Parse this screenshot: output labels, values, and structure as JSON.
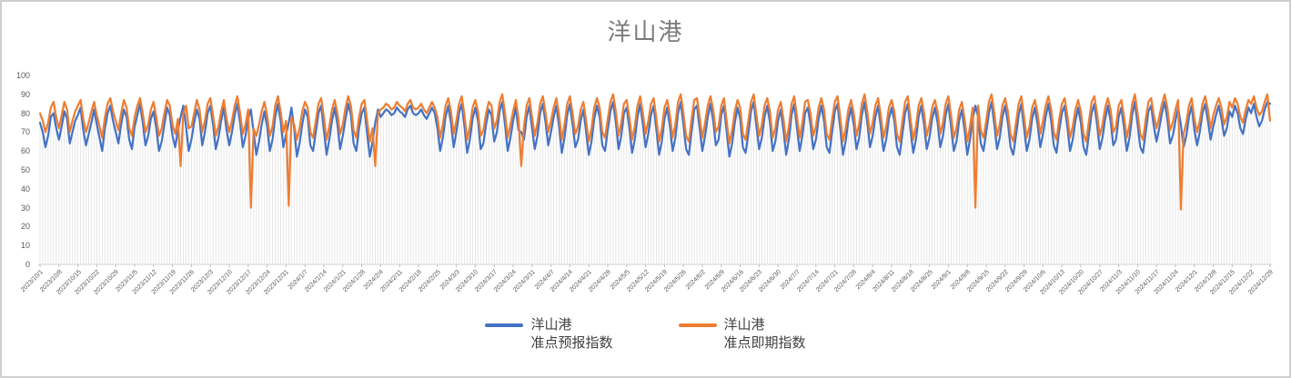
{
  "window": {
    "background": "#ffffff",
    "border_color": "#cfcfcf"
  },
  "chart_data": {
    "type": "line",
    "title": "洋山港",
    "title_color": "#7b7b7b",
    "xlabel": "",
    "ylabel": "",
    "ylim": [
      0,
      100
    ],
    "y_ticks": [
      0,
      10,
      20,
      30,
      40,
      50,
      60,
      70,
      80,
      90,
      100
    ],
    "x_start": "2023/10/1",
    "x_interval": "daily",
    "x_tick_every": 7,
    "legend_position": "bottom-center",
    "grid": "vertical droplines at every data point, no horizontal gridlines",
    "axis_color": "#d9d9d9",
    "dropline_color": "#e2e2e2",
    "tick_mark_color": "#bfbfbf",
    "tick_label_color": "#595959",
    "x_tick_labels": [
      "2023/10/1",
      "2023/10/8",
      "2023/10/15",
      "2023/10/22",
      "2023/10/29",
      "2023/11/5",
      "2023/11/12",
      "2023/11/19",
      "2023/11/26",
      "2023/12/3",
      "2023/12/10",
      "2023/12/17",
      "2023/12/24",
      "2023/12/31",
      "2024/1/7",
      "2024/1/14",
      "2024/1/21",
      "2024/1/28",
      "2024/2/4",
      "2024/2/11",
      "2024/2/18",
      "2024/2/25",
      "2024/3/3",
      "2024/3/10",
      "2024/3/17",
      "2024/3/24",
      "2024/3/31",
      "2024/4/7",
      "2024/4/14",
      "2024/4/21",
      "2024/4/28",
      "2024/5/5",
      "2024/5/12",
      "2024/5/19",
      "2024/5/26",
      "2024/6/2",
      "2024/6/9",
      "2024/6/16",
      "2024/6/23",
      "2024/6/30",
      "2024/7/7",
      "2024/7/14",
      "2024/7/21",
      "2024/7/28",
      "2024/8/4",
      "2024/8/11",
      "2024/8/18",
      "2024/8/25",
      "2024/9/1",
      "2024/9/8",
      "2024/9/15",
      "2024/9/22",
      "2024/9/29",
      "2024/10/6",
      "2024/10/13",
      "2024/10/20",
      "2024/10/27",
      "2024/11/3",
      "2024/11/10",
      "2024/11/17",
      "2024/11/24",
      "2024/12/1",
      "2024/12/8",
      "2024/12/15",
      "2024/12/22",
      "2024/12/29"
    ],
    "series": [
      {
        "name_line1": "洋山港",
        "name_line2": "准点预报指数",
        "color": "#4472C4",
        "values": [
          75,
          70,
          62,
          68,
          78,
          80,
          72,
          66,
          73,
          81,
          77,
          64,
          70,
          76,
          79,
          83,
          71,
          63,
          69,
          75,
          82,
          74,
          67,
          60,
          72,
          80,
          84,
          76,
          70,
          64,
          74,
          82,
          78,
          66,
          61,
          73,
          79,
          85,
          75,
          63,
          68,
          77,
          81,
          72,
          60,
          65,
          74,
          83,
          79,
          68,
          62,
          71,
          78,
          84,
          73,
          60,
          66,
          75,
          82,
          77,
          63,
          70,
          80,
          84,
          74,
          61,
          67,
          76,
          83,
          71,
          63,
          70,
          79,
          85,
          75,
          62,
          68,
          77,
          82,
          70,
          58,
          65,
          74,
          81,
          73,
          60,
          66,
          78,
          85,
          76,
          62,
          69,
          75,
          83,
          72,
          57,
          64,
          74,
          82,
          78,
          63,
          60,
          70,
          80,
          84,
          71,
          58,
          66,
          76,
          83,
          74,
          61,
          68,
          77,
          85,
          79,
          64,
          60,
          72,
          80,
          83,
          69,
          57,
          65,
          75,
          82,
          78,
          80,
          82,
          81,
          79,
          80,
          83,
          81,
          80,
          78,
          82,
          84,
          80,
          79,
          80,
          82,
          79,
          77,
          80,
          83,
          80,
          72,
          60,
          67,
          78,
          84,
          75,
          62,
          70,
          80,
          85,
          73,
          59,
          66,
          77,
          83,
          76,
          61,
          64,
          74,
          82,
          79,
          65,
          70,
          81,
          86,
          74,
          60,
          67,
          76,
          83,
          71,
          70,
          66,
          78,
          84,
          72,
          61,
          68,
          80,
          85,
          75,
          63,
          70,
          78,
          84,
          73,
          59,
          67,
          79,
          85,
          74,
          62,
          66,
          76,
          82,
          70,
          58,
          65,
          77,
          84,
          78,
          63,
          60,
          71,
          81,
          86,
          75,
          61,
          68,
          80,
          83,
          72,
          59,
          66,
          78,
          85,
          74,
          62,
          69,
          79,
          84,
          71,
          58,
          65,
          77,
          83,
          73,
          60,
          67,
          80,
          86,
          74,
          61,
          58,
          70,
          82,
          84,
          72,
          60,
          68,
          78,
          85,
          76,
          63,
          66,
          79,
          84,
          70,
          57,
          64,
          75,
          83,
          77,
          62,
          59,
          69,
          81,
          86,
          73,
          61,
          67,
          78,
          84,
          75,
          60,
          65,
          76,
          82,
          71,
          58,
          66,
          79,
          85,
          72,
          60,
          68,
          80,
          83,
          74,
          61,
          66,
          77,
          84,
          76,
          62,
          59,
          70,
          81,
          85,
          72,
          58,
          65,
          76,
          83,
          74,
          61,
          67,
          79,
          86,
          75,
          62,
          68,
          78,
          84,
          73,
          60,
          66,
          77,
          83,
          76,
          62,
          58,
          69,
          80,
          85,
          71,
          59,
          66,
          78,
          84,
          74,
          61,
          67,
          77,
          83,
          75,
          62,
          68,
          79,
          85,
          73,
          60,
          65,
          76,
          82,
          71,
          58,
          66,
          77,
          84,
          78,
          64,
          60,
          70,
          80,
          86,
          74,
          61,
          67,
          78,
          84,
          75,
          62,
          58,
          68,
          79,
          85,
          72,
          60,
          66,
          77,
          83,
          74,
          62,
          69,
          78,
          85,
          76,
          63,
          59,
          71,
          80,
          84,
          73,
          60,
          66,
          76,
          83,
          75,
          62,
          58,
          69,
          80,
          85,
          74,
          61,
          67,
          77,
          84,
          76,
          63,
          66,
          78,
          83,
          72,
          60,
          67,
          79,
          86,
          74,
          62,
          59,
          70,
          81,
          84,
          73,
          65,
          72,
          80,
          86,
          77,
          64,
          68,
          76,
          83,
          74,
          62,
          68,
          78,
          84,
          71,
          63,
          70,
          80,
          85,
          76,
          66,
          73,
          79,
          84,
          77,
          68,
          72,
          81,
          78,
          84,
          80,
          72,
          69,
          77,
          83,
          80,
          85,
          78,
          73,
          76,
          82,
          86,
          85
        ]
      },
      {
        "name_line1": "洋山港",
        "name_line2": "准点即期指数",
        "color": "#ED7D31",
        "values": [
          80,
          76,
          70,
          75,
          83,
          86,
          78,
          72,
          79,
          86,
          82,
          70,
          76,
          81,
          84,
          87,
          77,
          70,
          75,
          81,
          86,
          79,
          73,
          67,
          78,
          85,
          88,
          81,
          76,
          71,
          80,
          87,
          83,
          72,
          68,
          78,
          84,
          88,
          80,
          70,
          74,
          82,
          86,
          78,
          68,
          72,
          80,
          87,
          84,
          74,
          69,
          77,
          52,
          80,
          84,
          72,
          73,
          80,
          87,
          82,
          70,
          76,
          85,
          88,
          79,
          68,
          73,
          81,
          87,
          77,
          70,
          76,
          84,
          89,
          80,
          69,
          74,
          82,
          30,
          72,
          68,
          74,
          81,
          86,
          79,
          68,
          73,
          84,
          89,
          81,
          70,
          76,
          31,
          78,
          74,
          66,
          72,
          81,
          86,
          83,
          70,
          67,
          76,
          85,
          88,
          78,
          66,
          73,
          82,
          87,
          80,
          69,
          74,
          83,
          89,
          84,
          71,
          67,
          78,
          85,
          87,
          76,
          65,
          72,
          52,
          80,
          82,
          83,
          85,
          84,
          82,
          83,
          86,
          84,
          83,
          81,
          85,
          87,
          83,
          82,
          83,
          85,
          82,
          80,
          83,
          86,
          83,
          78,
          67,
          74,
          84,
          88,
          81,
          69,
          76,
          85,
          89,
          79,
          66,
          73,
          83,
          87,
          81,
          68,
          71,
          80,
          86,
          84,
          72,
          76,
          86,
          90,
          80,
          67,
          74,
          81,
          87,
          77,
          52,
          73,
          84,
          88,
          78,
          68,
          75,
          85,
          89,
          80,
          70,
          76,
          83,
          88,
          79,
          66,
          74,
          85,
          89,
          80,
          69,
          73,
          82,
          86,
          76,
          65,
          72,
          83,
          88,
          83,
          70,
          67,
          77,
          86,
          90,
          81,
          68,
          75,
          85,
          87,
          78,
          66,
          73,
          84,
          89,
          80,
          69,
          76,
          85,
          88,
          77,
          65,
          72,
          83,
          87,
          79,
          67,
          74,
          86,
          90,
          80,
          68,
          65,
          77,
          87,
          88,
          78,
          67,
          75,
          84,
          89,
          82,
          70,
          73,
          84,
          88,
          76,
          64,
          71,
          81,
          87,
          83,
          69,
          66,
          76,
          86,
          90,
          79,
          68,
          74,
          84,
          88,
          81,
          67,
          72,
          82,
          86,
          77,
          65,
          73,
          85,
          89,
          78,
          67,
          75,
          86,
          87,
          80,
          68,
          73,
          83,
          88,
          82,
          69,
          66,
          77,
          86,
          89,
          78,
          65,
          72,
          82,
          87,
          80,
          68,
          74,
          85,
          90,
          81,
          69,
          75,
          84,
          88,
          79,
          67,
          73,
          83,
          87,
          81,
          69,
          65,
          76,
          86,
          89,
          77,
          66,
          73,
          84,
          88,
          80,
          68,
          74,
          83,
          87,
          81,
          69,
          75,
          85,
          89,
          79,
          67,
          72,
          82,
          86,
          77,
          65,
          73,
          83,
          30,
          84,
          71,
          67,
          76,
          86,
          90,
          80,
          68,
          74,
          84,
          88,
          81,
          69,
          65,
          75,
          85,
          89,
          78,
          67,
          73,
          83,
          87,
          80,
          69,
          76,
          84,
          89,
          82,
          70,
          66,
          77,
          85,
          88,
          79,
          67,
          73,
          82,
          87,
          81,
          69,
          65,
          76,
          86,
          89,
          80,
          68,
          74,
          83,
          88,
          82,
          70,
          73,
          84,
          87,
          78,
          67,
          74,
          85,
          90,
          80,
          69,
          66,
          77,
          86,
          88,
          79,
          72,
          78,
          85,
          90,
          83,
          71,
          75,
          82,
          87,
          29,
          69,
          75,
          84,
          88,
          77,
          70,
          76,
          85,
          89,
          82,
          72,
          79,
          84,
          88,
          83,
          74,
          78,
          86,
          83,
          88,
          85,
          78,
          75,
          82,
          87,
          85,
          89,
          83,
          79,
          81,
          86,
          90,
          76
        ]
      }
    ]
  }
}
